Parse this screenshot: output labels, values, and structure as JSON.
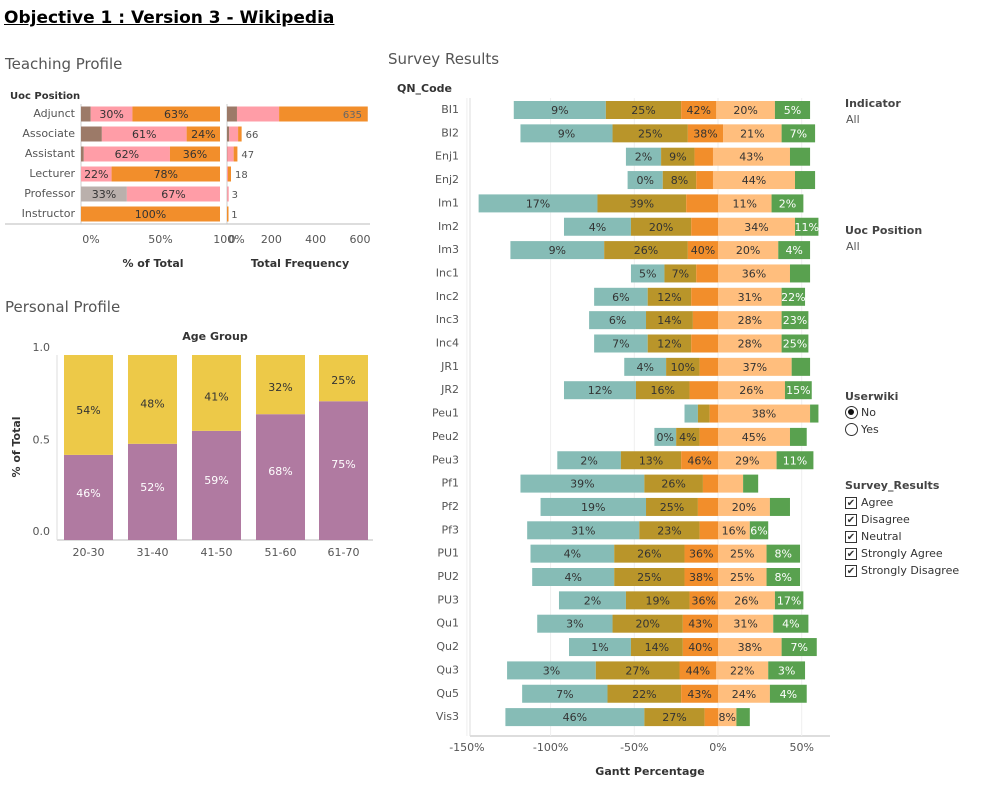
{
  "page_title": "Objective 1 : Version 3 - Wikipedia",
  "teaching": {
    "title": "Teaching Profile",
    "row_header": "Uoc Position"
  },
  "personal": {
    "title": "Personal Profile"
  },
  "survey": {
    "title": "Survey Results"
  },
  "filters": {
    "indicator": {
      "title": "Indicator",
      "value": "All"
    },
    "uoc_position": {
      "title": "Uoc Position",
      "value": "All"
    },
    "userwiki": {
      "title": "Userwiki",
      "options": [
        "No",
        "Yes"
      ],
      "selected": "No"
    },
    "survey_results": {
      "title": "Survey_Results",
      "options": [
        "Agree",
        "Disagree",
        "Neutral",
        "Strongly Agree",
        "Strongly Disagree"
      ]
    }
  },
  "colors": {
    "strongly_disagree": "#86bcb6",
    "disagree": "#b9952a",
    "neutral": "#f28e2b",
    "agree": "#ffbe7d",
    "strongly_agree": "#59a14f",
    "teach_c1": "#9c7a68",
    "teach_c2": "#ff9da7",
    "teach_c3": "#f28e2b",
    "teach_gray": "#bab0ac",
    "age_yes": "#edc948",
    "age_no": "#b07aa1"
  },
  "chart_data": [
    {
      "type": "bar",
      "orientation": "horizontal-stacked-100",
      "xlabel": "% of Total",
      "x_ticks": [
        "0%",
        "50%",
        "100%"
      ],
      "categories": [
        "Adjunct",
        "Associate",
        "Assistant",
        "Lecturer",
        "Professor",
        "Instructor"
      ],
      "segments": [
        [
          {
            "value": 7,
            "color": "teach_c1",
            "label": ""
          },
          {
            "value": 30,
            "color": "teach_c2",
            "label": "30%"
          },
          {
            "value": 63,
            "color": "teach_c3",
            "label": "63%"
          }
        ],
        [
          {
            "value": 15,
            "color": "teach_c1",
            "label": ""
          },
          {
            "value": 61,
            "color": "teach_c2",
            "label": "61%"
          },
          {
            "value": 24,
            "color": "teach_c3",
            "label": "24%"
          }
        ],
        [
          {
            "value": 2,
            "color": "teach_c1",
            "label": ""
          },
          {
            "value": 62,
            "color": "teach_c2",
            "label": "62%"
          },
          {
            "value": 36,
            "color": "teach_c3",
            "label": "36%"
          }
        ],
        [
          {
            "value": 22,
            "color": "teach_c2",
            "label": "22%"
          },
          {
            "value": 78,
            "color": "teach_c3",
            "label": "78%"
          }
        ],
        [
          {
            "value": 33,
            "color": "teach_gray",
            "label": "33%"
          },
          {
            "value": 67,
            "color": "teach_c2",
            "label": "67%"
          }
        ],
        [
          {
            "value": 100,
            "color": "teach_c3",
            "label": "100%"
          }
        ]
      ]
    },
    {
      "type": "bar",
      "orientation": "horizontal-stacked",
      "xlabel": "Total Frequency",
      "x_ticks": [
        0,
        200,
        400,
        600
      ],
      "xlim": [
        0,
        620
      ],
      "categories": [
        "Adjunct",
        "Associate",
        "Assistant",
        "Lecturer",
        "Professor",
        "Instructor"
      ],
      "totals": [
        635,
        66,
        47,
        18,
        3,
        1
      ],
      "segments": [
        [
          {
            "value": 45,
            "color": "teach_c1"
          },
          {
            "value": 190,
            "color": "teach_c2"
          },
          {
            "value": 400,
            "color": "teach_c3"
          }
        ],
        [
          {
            "value": 10,
            "color": "teach_c1"
          },
          {
            "value": 40,
            "color": "teach_c2"
          },
          {
            "value": 16,
            "color": "teach_c3"
          }
        ],
        [
          {
            "value": 1,
            "color": "teach_c1"
          },
          {
            "value": 29,
            "color": "teach_c2"
          },
          {
            "value": 17,
            "color": "teach_c3"
          }
        ],
        [
          {
            "value": 4,
            "color": "teach_c2"
          },
          {
            "value": 14,
            "color": "teach_c3"
          }
        ],
        [
          {
            "value": 1,
            "color": "teach_gray"
          },
          {
            "value": 2,
            "color": "teach_c2"
          }
        ],
        [
          {
            "value": 1,
            "color": "teach_c3"
          }
        ]
      ]
    },
    {
      "type": "bar",
      "orientation": "vertical-stacked-100",
      "title": "Age Group",
      "ylabel": "% of Total",
      "ylim": [
        0,
        1
      ],
      "y_ticks": [
        "0.0",
        "0.5",
        "1.0"
      ],
      "categories": [
        "20-30",
        "31-40",
        "41-50",
        "51-60",
        "61-70"
      ],
      "series": [
        {
          "color": "age_no",
          "values": [
            0.46,
            0.52,
            0.59,
            0.68,
            0.75
          ],
          "labels": [
            "46%",
            "52%",
            "59%",
            "68%",
            "75%"
          ]
        },
        {
          "color": "age_yes",
          "values": [
            0.54,
            0.48,
            0.41,
            0.32,
            0.25
          ],
          "labels": [
            "54%",
            "48%",
            "41%",
            "32%",
            "25%"
          ]
        }
      ]
    },
    {
      "type": "bar",
      "orientation": "diverging-stacked-gantt",
      "row_header": "QN_Code",
      "xlabel": "Gantt Percentage",
      "x_ticks": [
        -150,
        -100,
        -50,
        0,
        50
      ],
      "x_tick_labels": [
        "-150%",
        "-100%",
        "-50%",
        "0%",
        "50%"
      ],
      "xlim": [
        -162,
        57
      ],
      "series_order": [
        "strongly_disagree",
        "disagree",
        "neutral",
        "agree",
        "strongly_agree"
      ],
      "rows": [
        {
          "code": "BI1",
          "start": -122,
          "segments": [
            55,
            45,
            21,
            35,
            21
          ],
          "labels": [
            "9%",
            "25%",
            "42%",
            "20%",
            "5%"
          ]
        },
        {
          "code": "BI2",
          "start": -118,
          "segments": [
            55,
            45,
            21,
            35,
            20
          ],
          "labels": [
            "9%",
            "25%",
            "38%",
            "21%",
            "7%"
          ]
        },
        {
          "code": "Enj1",
          "start": -55,
          "segments": [
            21,
            20,
            11,
            46,
            12
          ],
          "labels": [
            "2%",
            "9%",
            "",
            "43%",
            ""
          ]
        },
        {
          "code": "Enj2",
          "start": -54,
          "segments": [
            21,
            20,
            10,
            49,
            12
          ],
          "labels": [
            "0%",
            "8%",
            "",
            "44%",
            ""
          ]
        },
        {
          "code": "Im1",
          "start": -143,
          "segments": [
            71,
            53,
            19,
            32,
            19
          ],
          "labels": [
            "17%",
            "39%",
            "",
            "11%",
            "2%"
          ]
        },
        {
          "code": "Im2",
          "start": -92,
          "segments": [
            40,
            36,
            16,
            46,
            14
          ],
          "labels": [
            "4%",
            "20%",
            "",
            "34%",
            "11%"
          ]
        },
        {
          "code": "Im3",
          "start": -124,
          "segments": [
            56,
            50,
            18,
            36,
            19
          ],
          "labels": [
            "9%",
            "26%",
            "40%",
            "20%",
            "4%"
          ]
        },
        {
          "code": "Inc1",
          "start": -52,
          "segments": [
            20,
            19,
            13,
            43,
            12
          ],
          "labels": [
            "5%",
            "7%",
            "",
            "36%",
            ""
          ]
        },
        {
          "code": "Inc2",
          "start": -74,
          "segments": [
            32,
            26,
            16,
            38,
            14
          ],
          "labels": [
            "6%",
            "12%",
            "",
            "31%",
            "22%"
          ]
        },
        {
          "code": "Inc3",
          "start": -77,
          "segments": [
            34,
            28,
            15,
            38,
            16
          ],
          "labels": [
            "6%",
            "14%",
            "",
            "28%",
            "23%"
          ]
        },
        {
          "code": "Inc4",
          "start": -74,
          "segments": [
            32,
            26,
            16,
            38,
            16
          ],
          "labels": [
            "7%",
            "12%",
            "",
            "28%",
            "25%"
          ]
        },
        {
          "code": "JR1",
          "start": -56,
          "segments": [
            25,
            20,
            11,
            44,
            11
          ],
          "labels": [
            "4%",
            "10%",
            "",
            "37%",
            ""
          ]
        },
        {
          "code": "JR2",
          "start": -92,
          "segments": [
            43,
            32,
            17,
            40,
            16
          ],
          "labels": [
            "12%",
            "16%",
            "",
            "26%",
            "15%"
          ]
        },
        {
          "code": "Peu1",
          "start": -20,
          "segments": [
            8,
            7,
            5,
            55,
            5
          ],
          "labels": [
            "",
            "",
            "",
            "38%",
            ""
          ]
        },
        {
          "code": "Peu2",
          "start": -38,
          "segments": [
            13,
            14,
            11,
            43,
            10
          ],
          "labels": [
            "0%",
            "4%",
            "",
            "45%",
            ""
          ]
        },
        {
          "code": "Peu3",
          "start": -96,
          "segments": [
            38,
            36,
            22,
            35,
            22
          ],
          "labels": [
            "2%",
            "13%",
            "46%",
            "29%",
            "11%"
          ]
        },
        {
          "code": "Pf1",
          "start": -118,
          "segments": [
            74,
            35,
            9,
            15,
            9
          ],
          "labels": [
            "39%",
            "26%",
            "",
            "",
            ""
          ]
        },
        {
          "code": "Pf2",
          "start": -106,
          "segments": [
            63,
            31,
            12,
            31,
            12
          ],
          "labels": [
            "19%",
            "25%",
            "",
            "20%",
            ""
          ]
        },
        {
          "code": "Pf3",
          "start": -114,
          "segments": [
            67,
            36,
            11,
            19,
            11
          ],
          "labels": [
            "31%",
            "23%",
            "",
            "16%",
            "6%"
          ]
        },
        {
          "code": "PU1",
          "start": -112,
          "segments": [
            50,
            42,
            20,
            29,
            20
          ],
          "labels": [
            "4%",
            "26%",
            "36%",
            "25%",
            "8%"
          ]
        },
        {
          "code": "PU2",
          "start": -111,
          "segments": [
            49,
            42,
            20,
            29,
            20
          ],
          "labels": [
            "4%",
            "25%",
            "38%",
            "25%",
            "8%"
          ]
        },
        {
          "code": "PU3",
          "start": -95,
          "segments": [
            40,
            38,
            17,
            34,
            17
          ],
          "labels": [
            "2%",
            "19%",
            "36%",
            "26%",
            "17%"
          ]
        },
        {
          "code": "Qu1",
          "start": -108,
          "segments": [
            45,
            42,
            21,
            33,
            21
          ],
          "labels": [
            "3%",
            "20%",
            "43%",
            "31%",
            "4%"
          ]
        },
        {
          "code": "Qu2",
          "start": -89,
          "segments": [
            37,
            31,
            21,
            38,
            21
          ],
          "labels": [
            "1%",
            "14%",
            "40%",
            "38%",
            "7%"
          ]
        },
        {
          "code": "Qu3",
          "start": -126,
          "segments": [
            53,
            50,
            22,
            31,
            22
          ],
          "labels": [
            "3%",
            "27%",
            "44%",
            "22%",
            "3%"
          ]
        },
        {
          "code": "Qu5",
          "start": -117,
          "segments": [
            51,
            44,
            22,
            31,
            22
          ],
          "labels": [
            "7%",
            "22%",
            "43%",
            "24%",
            "4%"
          ]
        },
        {
          "code": "Vis3",
          "start": -127,
          "segments": [
            83,
            36,
            8,
            11,
            8
          ],
          "labels": [
            "46%",
            "27%",
            "",
            "8%",
            ""
          ]
        }
      ]
    }
  ]
}
